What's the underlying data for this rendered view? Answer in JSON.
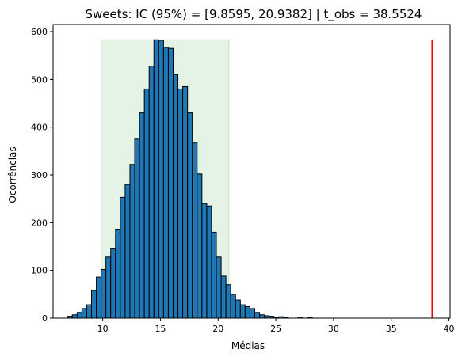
{
  "chart_data": {
    "type": "histogram",
    "title": "Sweets: IC (95%) = [9.8595, 20.9382] | t_obs = 38.5524",
    "xlabel": "Médias",
    "ylabel": "Ocorrências",
    "xlim": [
      5.7,
      40.1
    ],
    "ylim": [
      0,
      615
    ],
    "xticks": [
      10,
      15,
      20,
      25,
      30,
      35,
      40
    ],
    "yticks": [
      0,
      100,
      200,
      300,
      400,
      500,
      600
    ],
    "grid": false,
    "bin_width": 0.416,
    "bins_start": 6.95,
    "counts": [
      4,
      7,
      12,
      20,
      28,
      58,
      86,
      102,
      128,
      145,
      185,
      253,
      280,
      322,
      375,
      430,
      480,
      528,
      583,
      582,
      567,
      565,
      510,
      480,
      485,
      430,
      368,
      302,
      240,
      235,
      180,
      128,
      88,
      70,
      50,
      38,
      28,
      24,
      20,
      12,
      7,
      5,
      4,
      2,
      3,
      1,
      0,
      0,
      2,
      0,
      1
    ],
    "bar_color": "#1f77b4",
    "bar_edge_color": "#000000",
    "confidence_interval": {
      "lower": 9.8595,
      "upper": 20.9382,
      "color": "#2ca02c",
      "top": 583
    },
    "t_obs": {
      "value": 38.5524,
      "color": "#ff0000",
      "top": 583
    }
  }
}
